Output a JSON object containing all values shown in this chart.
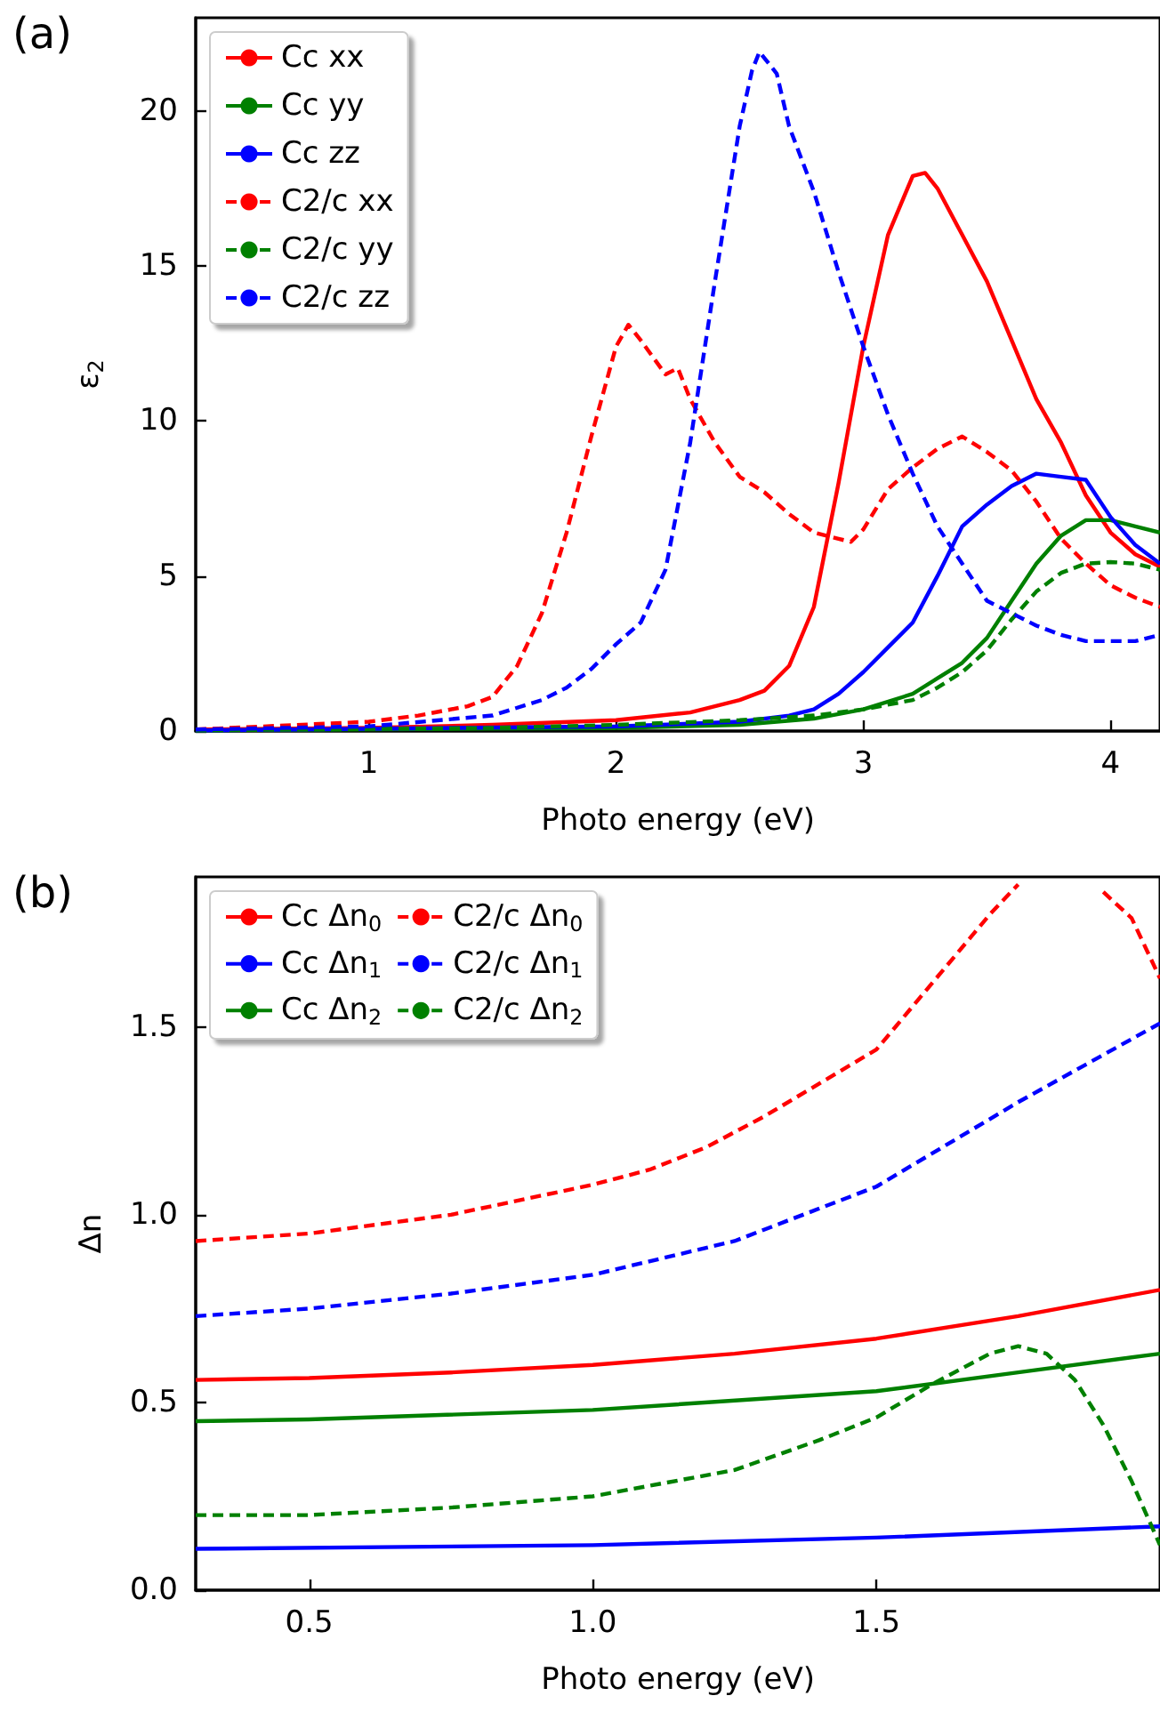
{
  "chart_data": [
    {
      "type": "line",
      "title": "(a)",
      "xlabel": "Photo energy (eV)",
      "ylabel": "ε$_{2}$",
      "xlim": [
        0.3,
        4.2
      ],
      "ylim": [
        0,
        23
      ],
      "xticks": [
        1,
        2,
        3,
        4
      ],
      "yticks": [
        0,
        5,
        10,
        15,
        20
      ],
      "grid": false,
      "legend": "top left",
      "marker": "none",
      "series": [
        {
          "name": "Cc xx",
          "color": "#ff0000",
          "line_style": "solid",
          "x": [
            0.3,
            1,
            1.5,
            2,
            2.3,
            2.5,
            2.6,
            2.7,
            2.8,
            2.9,
            3.0,
            3.1,
            3.2,
            3.25,
            3.3,
            3.4,
            3.5,
            3.6,
            3.7,
            3.8,
            3.9,
            4.0,
            4.1,
            4.2
          ],
          "values": [
            0.05,
            0.1,
            0.2,
            0.35,
            0.6,
            1.0,
            1.3,
            2.1,
            4,
            8,
            12.4,
            16,
            17.9,
            18,
            17.5,
            16,
            14.5,
            12.6,
            10.7,
            9.3,
            7.6,
            6.4,
            5.7,
            5.3
          ]
        },
        {
          "name": "Cc yy",
          "color": "#008000",
          "line_style": "solid",
          "x": [
            0.3,
            2,
            2.5,
            2.8,
            3.0,
            3.2,
            3.3,
            3.4,
            3.5,
            3.6,
            3.7,
            3.8,
            3.9,
            3.97,
            4.0,
            4.1,
            4.2
          ],
          "values": [
            0.02,
            0.1,
            0.2,
            0.4,
            0.7,
            1.2,
            1.7,
            2.2,
            3.0,
            4.2,
            5.4,
            6.3,
            6.8,
            6.8,
            6.8,
            6.6,
            6.4
          ]
        },
        {
          "name": "Cc zz",
          "color": "#0000ff",
          "line_style": "solid",
          "x": [
            0.3,
            2,
            2.5,
            2.7,
            2.8,
            2.9,
            3.0,
            3.1,
            3.2,
            3.3,
            3.4,
            3.5,
            3.6,
            3.7,
            3.8,
            3.9,
            4.0,
            4.1,
            4.2
          ],
          "values": [
            0.02,
            0.15,
            0.3,
            0.5,
            0.7,
            1.2,
            1.9,
            2.7,
            3.5,
            5.0,
            6.6,
            7.3,
            7.9,
            8.3,
            8.2,
            8.1,
            6.9,
            6.0,
            5.4
          ]
        },
        {
          "name": "C2/c xx",
          "color": "#ff0000",
          "line_style": "dashed",
          "x": [
            0.3,
            1,
            1.2,
            1.4,
            1.5,
            1.6,
            1.7,
            1.8,
            1.9,
            2.0,
            2.05,
            2.1,
            2.2,
            2.25,
            2.3,
            2.4,
            2.5,
            2.6,
            2.7,
            2.8,
            2.9,
            2.95,
            3.0,
            3.1,
            3.2,
            3.3,
            3.4,
            3.5,
            3.6,
            3.7,
            3.8,
            3.9,
            4.0,
            4.1,
            4.2
          ],
          "values": [
            0.05,
            0.3,
            0.5,
            0.8,
            1.1,
            2.1,
            3.8,
            6.4,
            9.5,
            12.4,
            13.1,
            12.6,
            11.5,
            11.7,
            10.7,
            9.3,
            8.2,
            7.7,
            7.0,
            6.4,
            6.2,
            6.1,
            6.5,
            7.8,
            8.5,
            9.1,
            9.5,
            9.0,
            8.4,
            7.4,
            6.2,
            5.4,
            4.7,
            4.3,
            4.0
          ]
        },
        {
          "name": "C2/c yy",
          "color": "#008000",
          "line_style": "dashed",
          "x": [
            0.3,
            1.5,
            2,
            2.5,
            2.8,
            3.0,
            3.2,
            3.3,
            3.4,
            3.5,
            3.6,
            3.7,
            3.8,
            3.9,
            4.0,
            4.1,
            4.2
          ],
          "values": [
            0.02,
            0.1,
            0.2,
            0.35,
            0.5,
            0.7,
            1.0,
            1.4,
            1.9,
            2.6,
            3.6,
            4.5,
            5.1,
            5.4,
            5.45,
            5.4,
            5.2
          ]
        },
        {
          "name": "C2/c zz",
          "color": "#0000ff",
          "line_style": "dashed",
          "x": [
            0.3,
            1,
            1.5,
            1.7,
            1.8,
            1.9,
            2.0,
            2.1,
            2.2,
            2.3,
            2.4,
            2.5,
            2.55,
            2.58,
            2.65,
            2.7,
            2.8,
            2.9,
            3.0,
            3.1,
            3.2,
            3.3,
            3.4,
            3.5,
            3.6,
            3.7,
            3.8,
            3.9,
            4.0,
            4.1,
            4.2
          ],
          "values": [
            0.05,
            0.15,
            0.5,
            1.0,
            1.4,
            2.0,
            2.8,
            3.5,
            5.2,
            9.3,
            14.5,
            19.5,
            21.3,
            21.9,
            21.2,
            19.5,
            17.4,
            14.8,
            12.4,
            10.2,
            8.3,
            6.6,
            5.4,
            4.2,
            3.8,
            3.4,
            3.1,
            2.9,
            2.9,
            2.9,
            3.1
          ]
        }
      ]
    },
    {
      "type": "line",
      "title": "(b)",
      "xlabel": "Photo energy (eV)",
      "ylabel": "Δn",
      "xlim": [
        0.3,
        2.0
      ],
      "ylim": [
        0,
        1.9
      ],
      "xticks": [
        {
          "value": 0.5,
          "label": "0.5"
        },
        {
          "value": 1,
          "label": "1.0"
        },
        {
          "value": 1.5,
          "label": "1.5"
        }
      ],
      "yticks": [
        {
          "value": 0,
          "label": "0.0"
        },
        {
          "value": 0.5,
          "label": "0.5"
        },
        {
          "value": 1,
          "label": "1.0"
        },
        {
          "value": 1.5,
          "label": "1.5"
        }
      ],
      "grid": false,
      "legend": "top left",
      "marker": "none",
      "series": [
        {
          "name": "Cc Δn$_{0}$",
          "color": "#ff0000",
          "line_style": "solid",
          "x": [
            0.3,
            0.5,
            0.75,
            1.0,
            1.25,
            1.5,
            1.75,
            2.0
          ],
          "values": [
            0.56,
            0.565,
            0.58,
            0.6,
            0.63,
            0.67,
            0.73,
            0.8
          ]
        },
        {
          "name": "C2/c Δn$_{0}$",
          "color": "#ff0000",
          "line_style": "dashed",
          "x": [
            0.3,
            0.5,
            0.75,
            1.0,
            1.1,
            1.2,
            1.3,
            1.4,
            1.5,
            1.6,
            1.7,
            1.75,
            1.8,
            1.85,
            1.9,
            1.95,
            2.0
          ],
          "values": [
            0.93,
            0.95,
            1.0,
            1.08,
            1.12,
            1.18,
            1.26,
            1.35,
            1.44,
            1.62,
            1.8,
            1.88,
            null,
            null,
            1.86,
            1.79,
            1.63
          ]
        },
        {
          "name": "Cc Δn$_{1}$",
          "color": "#0000ff",
          "line_style": "solid",
          "x": [
            0.3,
            1.0,
            1.5,
            2.0
          ],
          "values": [
            0.11,
            0.12,
            0.14,
            0.17
          ]
        },
        {
          "name": "C2/c Δn$_{1}$",
          "color": "#0000ff",
          "line_style": "dashed",
          "x": [
            0.3,
            0.5,
            0.75,
            1.0,
            1.25,
            1.5,
            1.75,
            2.0
          ],
          "values": [
            0.73,
            0.75,
            0.79,
            0.84,
            0.93,
            1.075,
            1.3,
            1.51
          ]
        },
        {
          "name": "Cc Δn$_{2}$",
          "color": "#008000",
          "line_style": "solid",
          "x": [
            0.3,
            0.5,
            1.0,
            1.5,
            1.75,
            2.0
          ],
          "values": [
            0.45,
            0.455,
            0.48,
            0.53,
            0.58,
            0.63
          ]
        },
        {
          "name": "C2/c Δn$_{2}$",
          "color": "#008000",
          "line_style": "dashed",
          "x": [
            0.3,
            0.5,
            0.75,
            1.0,
            1.25,
            1.4,
            1.5,
            1.6,
            1.7,
            1.75,
            1.8,
            1.85,
            1.9,
            1.95,
            2.0
          ],
          "values": [
            0.2,
            0.2,
            0.22,
            0.25,
            0.32,
            0.4,
            0.46,
            0.55,
            0.63,
            0.65,
            0.63,
            0.56,
            0.44,
            0.29,
            0.12
          ]
        }
      ]
    }
  ]
}
